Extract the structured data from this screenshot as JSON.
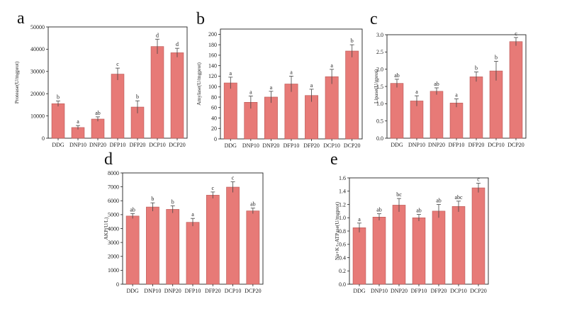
{
  "figure": {
    "bar_color": "#e77a77",
    "bar_edge_color": "#b85552",
    "error_color": "#444444"
  },
  "chart_data": [
    {
      "panel": "a",
      "type": "bar",
      "categories": [
        "DDG",
        "DNP10",
        "DNP20",
        "DFP10",
        "DFP20",
        "DCP10",
        "DCP20"
      ],
      "values": [
        15500,
        4800,
        8600,
        28800,
        14000,
        41200,
        38400
      ],
      "errors": [
        1200,
        900,
        1000,
        2700,
        2800,
        3300,
        2000
      ],
      "labels": [
        "b",
        "a",
        "ab",
        "c",
        "b",
        "d",
        "d"
      ],
      "ylabel": "Protease(U/mgprot)",
      "ylim": [
        0,
        50000
      ],
      "yticks": [
        "0",
        "10000",
        "20000",
        "30000",
        "40000",
        "50000"
      ]
    },
    {
      "panel": "b",
      "type": "bar",
      "categories": [
        "DDG",
        "DNP10",
        "DNP20",
        "DFP10",
        "DFP20",
        "DCP10",
        "DCP20"
      ],
      "values": [
        107,
        70,
        80,
        105,
        83,
        119,
        168
      ],
      "errors": [
        11,
        12,
        11,
        15,
        12,
        14,
        12
      ],
      "labels": [
        "a",
        "a",
        "a",
        "a",
        "a",
        "a",
        "b"
      ],
      "ylabel": "Amylase(U/mgprot)",
      "ylim": [
        0,
        210
      ],
      "yticks": [
        "0",
        "20",
        "40",
        "60",
        "80",
        "100",
        "120",
        "140",
        "160",
        "180",
        "200"
      ]
    },
    {
      "panel": "c",
      "type": "bar",
      "categories": [
        "DDG",
        "DNP10",
        "DNP20",
        "DFP10",
        "DFP20",
        "DCP10",
        "DCP20"
      ],
      "values": [
        1.59,
        1.08,
        1.36,
        1.02,
        1.78,
        1.95,
        2.8
      ],
      "errors": [
        0.12,
        0.15,
        0.1,
        0.12,
        0.14,
        0.28,
        0.12
      ],
      "labels": [
        "ab",
        "a",
        "ab",
        "a",
        "b",
        "b",
        "c"
      ],
      "ylabel": "Lipase(U/gprot)",
      "ylim": [
        0,
        3.0
      ],
      "yticks": [
        "0.0",
        "0.5",
        "1.0",
        "1.5",
        "2.0",
        "2.5",
        "3.0"
      ]
    },
    {
      "panel": "d",
      "type": "bar",
      "categories": [
        "DDG",
        "DNP10",
        "DNP20",
        "DFP10",
        "DFP20",
        "DCP10",
        "DCP20"
      ],
      "values": [
        4900,
        5550,
        5380,
        4450,
        6400,
        6980,
        5270
      ],
      "errors": [
        180,
        300,
        260,
        280,
        230,
        380,
        200
      ],
      "labels": [
        "ab",
        "b",
        "b",
        "a",
        "c",
        "c",
        "ab"
      ],
      "ylabel": "AKP(U/L)",
      "ylim": [
        0,
        8000
      ],
      "yticks": [
        "0",
        "1000",
        "2000",
        "3000",
        "4000",
        "5000",
        "6000",
        "7000",
        "8000"
      ]
    },
    {
      "panel": "e",
      "type": "bar",
      "categories": [
        "DDG",
        "DNP10",
        "DNP20",
        "DFP10",
        "DFP20",
        "DCP10",
        "DCP20"
      ],
      "values": [
        0.85,
        1.01,
        1.19,
        1.0,
        1.1,
        1.17,
        1.45
      ],
      "errors": [
        0.07,
        0.05,
        0.1,
        0.05,
        0.1,
        0.08,
        0.07
      ],
      "labels": [
        "a",
        "ab",
        "bc",
        "ab",
        "ab",
        "abc",
        "c"
      ],
      "ylabel": "Na+K+-ATPase(U/mgprot)",
      "ylim": [
        0,
        1.6
      ],
      "yticks": [
        "0.0",
        "0.2",
        "0.4",
        "0.6",
        "0.8",
        "1.0",
        "1.2",
        "1.4",
        "1.6"
      ]
    }
  ]
}
